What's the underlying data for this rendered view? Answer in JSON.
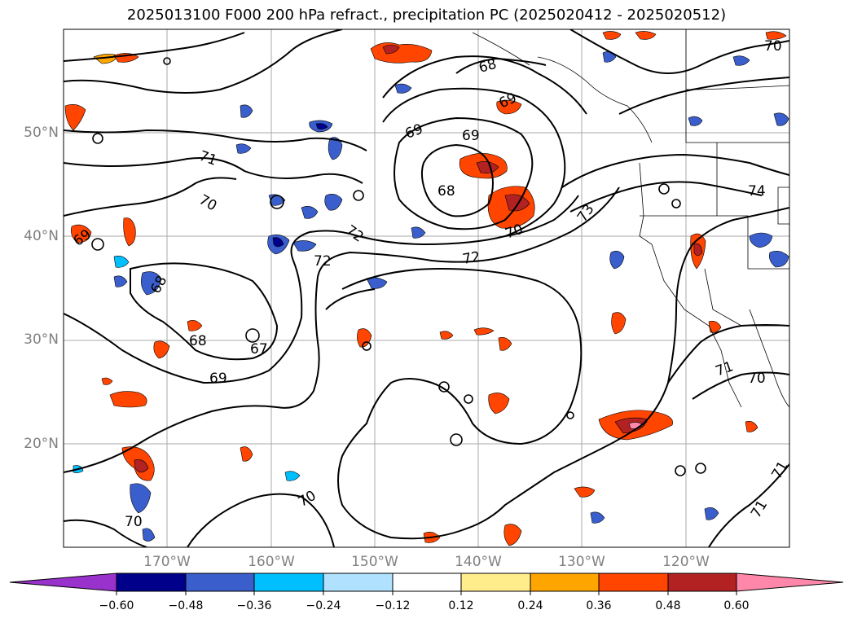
{
  "title": "2025013100 F000 200 hPa refract., precipitation PC (2025020412 - 2025020512)",
  "lat_labels": [
    "50°N",
    "40°N",
    "30°N",
    "20°N"
  ],
  "lon_labels": [
    "170°W",
    "160°W",
    "150°W",
    "140°W",
    "130°W",
    "120°W"
  ],
  "contour_labels": [
    "70",
    "68",
    "69",
    "69",
    "69",
    "68",
    "71",
    "70",
    "69",
    "72",
    "72",
    "72",
    "70",
    "73",
    "74",
    "68",
    "67",
    "68",
    "69",
    "71",
    "70",
    "70",
    "71",
    "70",
    "71"
  ],
  "colorbar": {
    "ticks": [
      "−0.60",
      "−0.48",
      "−0.36",
      "−0.24",
      "−0.12",
      "0.12",
      "0.24",
      "0.36",
      "0.48",
      "0.60"
    ],
    "colors": [
      "#9932cc",
      "#00008b",
      "#3a5fcd",
      "#00bfff",
      "#b0e2ff",
      "#ffffff",
      "#ffec8b",
      "#ffa500",
      "#ff4500",
      "#b22222",
      "#ff88aa"
    ]
  }
}
